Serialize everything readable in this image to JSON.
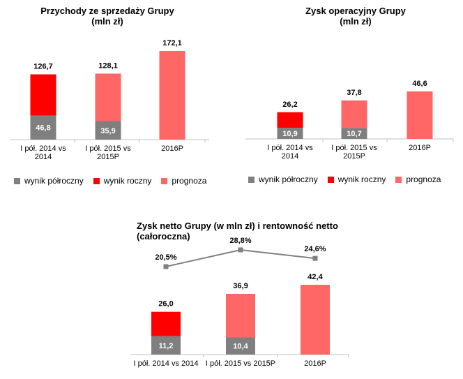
{
  "colors": {
    "semi": "#7f7f7f",
    "annual": "#ff0000",
    "forecast": "#ff6666",
    "line": "#808080"
  },
  "legend": {
    "semi": "wynik półroczny",
    "annual": "wynik roczny",
    "forecast": "prognoza"
  },
  "chart_data": [
    {
      "type": "bar",
      "title": "Przychody ze sprzedaży Grupy\n(mln zł)",
      "categories": [
        "I pół. 2014 vs\n2014",
        "I pół. 2015 vs\n2015P",
        "2016P"
      ],
      "semi": [
        46.8,
        35.9,
        null
      ],
      "total": [
        126.7,
        128.1,
        172.1
      ],
      "top_kind": [
        "annual",
        "forecast",
        "forecast"
      ],
      "semi_labels": [
        "46,8",
        "35,9",
        ""
      ],
      "total_labels": [
        "126,7",
        "128,1",
        "172,1"
      ],
      "ylim": [
        0,
        172.1
      ]
    },
    {
      "type": "bar",
      "title": "Zysk operacyjny Grupy\n(mln zł)",
      "categories": [
        "I pół. 2014 vs\n2014",
        "I pół. 2015 vs\n2015P",
        "2016P"
      ],
      "semi": [
        10.9,
        10.7,
        null
      ],
      "total": [
        26.2,
        37.8,
        46.6
      ],
      "top_kind": [
        "annual",
        "forecast",
        "forecast"
      ],
      "semi_labels": [
        "10,9",
        "10,7",
        ""
      ],
      "total_labels": [
        "26,2",
        "37,8",
        "46,6"
      ],
      "ylim": [
        0,
        46.6
      ]
    },
    {
      "type": "bar",
      "title": "Zysk netto Grupy (w mln zł) i rentowność netto\n(całoroczna)",
      "categories": [
        "I pół. 2014 vs 2014",
        "I pół. 2015 vs 2015P",
        "2016P"
      ],
      "semi": [
        11.2,
        10.4,
        null
      ],
      "total": [
        26.0,
        36.9,
        42.4
      ],
      "top_kind": [
        "annual",
        "forecast",
        "forecast"
      ],
      "semi_labels": [
        "11,2",
        "10,4",
        ""
      ],
      "total_labels": [
        "26,0",
        "36,9",
        "42,4"
      ],
      "ylim": [
        0,
        42.4
      ],
      "line_series": {
        "values": [
          20.5,
          28.8,
          24.6
        ],
        "labels": [
          "20,5%",
          "28,8%",
          "24,6%"
        ]
      }
    }
  ]
}
